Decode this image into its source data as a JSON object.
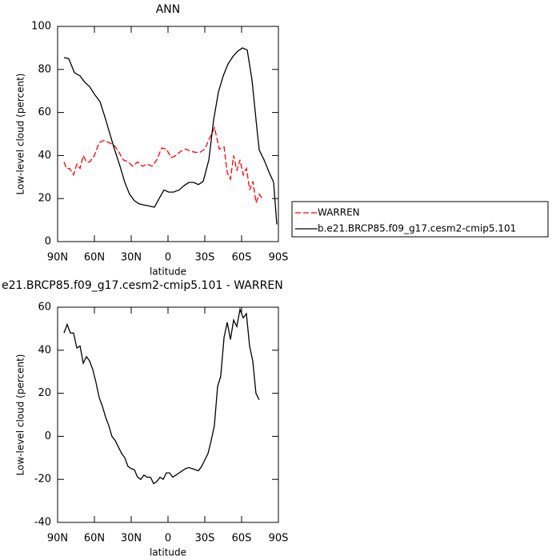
{
  "chart_data": [
    {
      "type": "line",
      "title": "ANN",
      "xlabel": "latitude",
      "ylabel": "Low-level cloud (percent)",
      "xlim": [
        90,
        -90
      ],
      "xticks": [
        {
          "value": 90,
          "label": "90N"
        },
        {
          "value": 60,
          "label": "60N"
        },
        {
          "value": 30,
          "label": "30N"
        },
        0,
        {
          "value": -30,
          "label": "30S"
        },
        {
          "value": -60,
          "label": "60S"
        },
        {
          "value": -90,
          "label": "90S"
        }
      ],
      "ylim": [
        0,
        100
      ],
      "yticks": [
        0,
        20,
        40,
        60,
        80,
        100
      ],
      "legend": "outside-right",
      "series": [
        {
          "name": "WARREN",
          "color": "#ff0000",
          "dashed": true,
          "x": [
            84.8,
            82.8,
            80.2,
            77.0,
            74.3,
            71.7,
            69.1,
            66.5,
            63.9,
            60.0,
            56.1,
            52.2,
            48.3,
            44.3,
            40.4,
            36.5,
            32.6,
            28.7,
            24.8,
            20.9,
            16.9,
            13.0,
            9.1,
            5.2,
            1.3,
            -2.6,
            -6.5,
            -10.5,
            -14.4,
            -18.3,
            -22.2,
            -26.1,
            -30.0,
            -33.9,
            -37.9,
            -41.8,
            -45.7,
            -48.3,
            -50.9,
            -53.5,
            -56.1,
            -58.7,
            -61.3,
            -64.0,
            -66.6,
            -69.2,
            -71.8,
            -74.4,
            -77.0
          ],
          "values": [
            37,
            34,
            34,
            31,
            36,
            34,
            40,
            37,
            37,
            40,
            46,
            47,
            46,
            45,
            42,
            38,
            37,
            35,
            37,
            35,
            36,
            35,
            38,
            43.5,
            43,
            39,
            40,
            42,
            43,
            42,
            41.5,
            41.5,
            43,
            48,
            53,
            43,
            44,
            32,
            29,
            40,
            33,
            38,
            31,
            34,
            24,
            28,
            18,
            22,
            20
          ]
        },
        {
          "name": "b.e21.BRCP85.f09_g17.cesm2-cmip5.101",
          "color": "#000000",
          "dashed": false,
          "x": [
            84.8,
            80.9,
            76.3,
            71.7,
            67.8,
            63.9,
            60.0,
            55.4,
            51.5,
            47.6,
            43.7,
            39.1,
            35.2,
            31.3,
            27.4,
            23.5,
            19.6,
            15.0,
            11.1,
            7.2,
            3.3,
            -0.6,
            -4.5,
            -9.1,
            -13.1,
            -17.0,
            -20.9,
            -24.8,
            -28.7,
            -33.3,
            -37.2,
            -41.1,
            -45.0,
            -48.9,
            -52.9,
            -56.8,
            -60.7,
            -64.6,
            -68.5,
            -72.4,
            -74.4,
            -78.3,
            -82.2,
            -86.1,
            -88.7
          ],
          "values": [
            85.5,
            85,
            78.5,
            77,
            74,
            72,
            68.5,
            65,
            58,
            50.5,
            43,
            35,
            27.5,
            22,
            19,
            17.5,
            17,
            16.5,
            16,
            20,
            24,
            23,
            23,
            24,
            26,
            27.5,
            27.5,
            26.5,
            28,
            38,
            56.5,
            69.5,
            77,
            82.5,
            86,
            88.5,
            90,
            89,
            75,
            53,
            42.5,
            38,
            32.5,
            27.5,
            8
          ]
        }
      ]
    },
    {
      "type": "line",
      "title": "e21.BRCP85.f09_g17.cesm2-cmip5.101 - WARREN",
      "xlabel": "latitude",
      "ylabel": "Low-level cloud (percent)",
      "xlim": [
        90,
        -90
      ],
      "xticks": [
        {
          "value": 90,
          "label": "90N"
        },
        {
          "value": 60,
          "label": "60N"
        },
        {
          "value": 30,
          "label": "30N"
        },
        0,
        {
          "value": -30,
          "label": "30S"
        },
        {
          "value": -60,
          "label": "60S"
        },
        {
          "value": -90,
          "label": "90S"
        }
      ],
      "ylim": [
        -40,
        60
      ],
      "yticks": [
        -40,
        -20,
        0,
        20,
        40,
        60
      ],
      "series": [
        {
          "color": "#000000",
          "dashed": false,
          "x": [
            84.8,
            82.2,
            79.6,
            77.0,
            74.3,
            71.7,
            69.1,
            66.5,
            63.9,
            61.3,
            58.7,
            56.1,
            53.5,
            50.9,
            48.3,
            45.7,
            43.0,
            40.4,
            37.8,
            35.2,
            32.6,
            30.0,
            27.4,
            24.8,
            22.2,
            19.6,
            17.0,
            14.3,
            11.7,
            9.1,
            6.5,
            3.9,
            1.3,
            -1.3,
            -3.9,
            -6.5,
            -9.1,
            -11.7,
            -14.4,
            -17.0,
            -19.6,
            -22.2,
            -24.8,
            -27.4,
            -30.0,
            -32.6,
            -35.2,
            -37.8,
            -40.4,
            -43.0,
            -45.7,
            -48.3,
            -50.9,
            -53.5,
            -56.1,
            -58.7,
            -61.3,
            -63.9,
            -66.5,
            -69.1,
            -71.7,
            -74.3
          ],
          "values": [
            48,
            52,
            48,
            48,
            41,
            42,
            34,
            37,
            35,
            31,
            25,
            18,
            14,
            9,
            5,
            0,
            -2,
            -5,
            -8,
            -10,
            -14,
            -15,
            -15.5,
            -19,
            -20,
            -18,
            -19,
            -19,
            -22,
            -21,
            -19,
            -20,
            -17,
            -17,
            -19,
            -18,
            -17,
            -16,
            -15,
            -14.5,
            -15,
            -15.5,
            -16,
            -14,
            -11,
            -8,
            -2,
            5,
            23,
            28,
            46,
            53,
            45,
            54,
            51,
            59,
            55,
            57,
            42,
            35,
            20,
            17
          ]
        }
      ]
    }
  ]
}
